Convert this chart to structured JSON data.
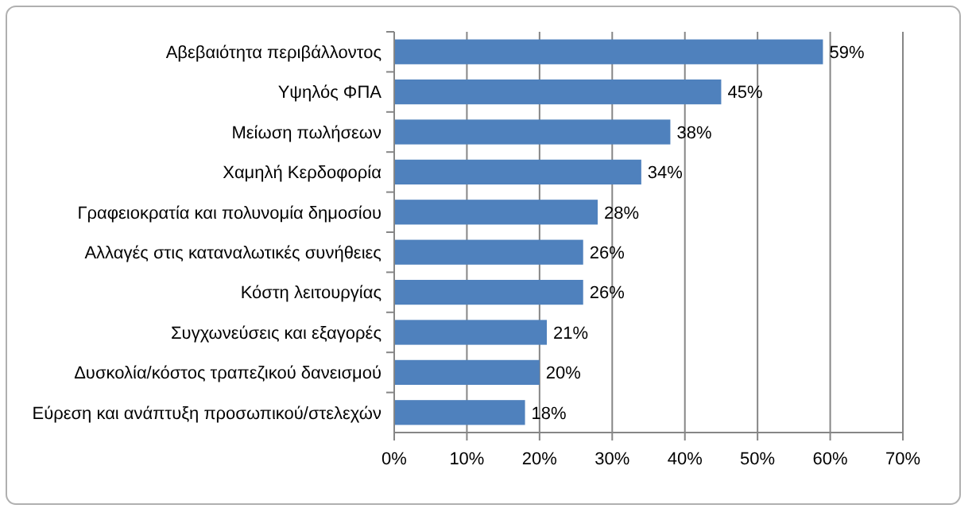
{
  "chart_data": {
    "type": "bar",
    "orientation": "horizontal",
    "categories": [
      "Αβεβαιότητα περιβάλλοντος",
      "Υψηλός ΦΠΑ",
      "Μείωση πωλήσεων",
      "Χαμηλή Κερδοφορία",
      "Γραφειοκρατία και πολυνομία δημοσίου",
      "Αλλαγές στις καταναλωτικές συνήθειες",
      "Κόστη λειτουργίας",
      "Συγχωνεύσεις και εξαγορές",
      "Δυσκολία/κόστος τραπεζικού δανεισμού",
      "Εύρεση και ανάπτυξη προσωπικού/στελεχών"
    ],
    "values": [
      59,
      45,
      38,
      34,
      28,
      26,
      26,
      21,
      20,
      18
    ],
    "value_labels": [
      "59%",
      "45%",
      "38%",
      "34%",
      "28%",
      "26%",
      "26%",
      "21%",
      "20%",
      "18%"
    ],
    "color": "#4f81bd",
    "xlim": [
      0,
      70
    ],
    "xticks": [
      {
        "value": 0,
        "label": "0%"
      },
      {
        "value": 10,
        "label": "10%"
      },
      {
        "value": 20,
        "label": "20%"
      },
      {
        "value": 30,
        "label": "30%"
      },
      {
        "value": 40,
        "label": "40%"
      },
      {
        "value": 50,
        "label": "50%"
      },
      {
        "value": 60,
        "label": "60%"
      },
      {
        "value": 70,
        "label": "70%"
      }
    ],
    "grid": "x"
  }
}
